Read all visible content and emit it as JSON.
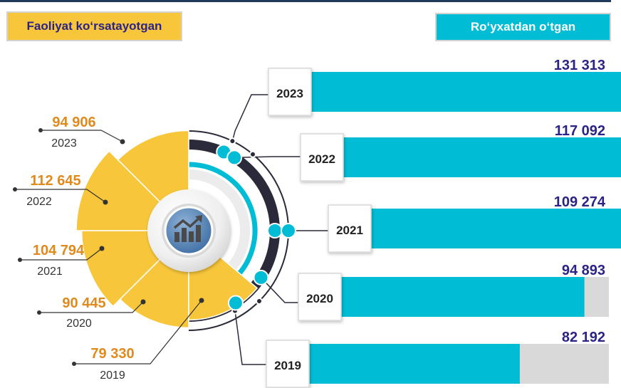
{
  "legend": {
    "active_label": "Faoliyat ko‘rsatayotgan",
    "registered_label": "Ro‘yxatdan o‘tgan"
  },
  "chart_data": {
    "type": "bar",
    "categories": [
      "2023",
      "2022",
      "2021",
      "2020",
      "2019"
    ],
    "series": [
      {
        "name": "Ro‘yxatdan o‘tgan",
        "values": [
          131313,
          117092,
          109274,
          94893,
          82192
        ],
        "labels": [
          "131 313",
          "117 092",
          "109 274",
          "94 893",
          "82 192"
        ],
        "color": "#00bcd4"
      },
      {
        "name": "Faoliyat ko‘rsatayotgan",
        "values": [
          94906,
          112645,
          104794,
          90445,
          79330
        ],
        "labels": [
          "94 906",
          "112 645",
          "104 794",
          "90 445",
          "79 330"
        ],
        "color": "#f7c63a"
      }
    ],
    "bar_max": 150000
  },
  "colors": {
    "cyan": "#00bcd4",
    "yellow": "#f7c63a",
    "navy": "#2b2486",
    "orange": "#e08a1e",
    "dark": "#2a2a3a",
    "track": "#d9d9d9"
  },
  "icon": "chart-trend-up-icon"
}
